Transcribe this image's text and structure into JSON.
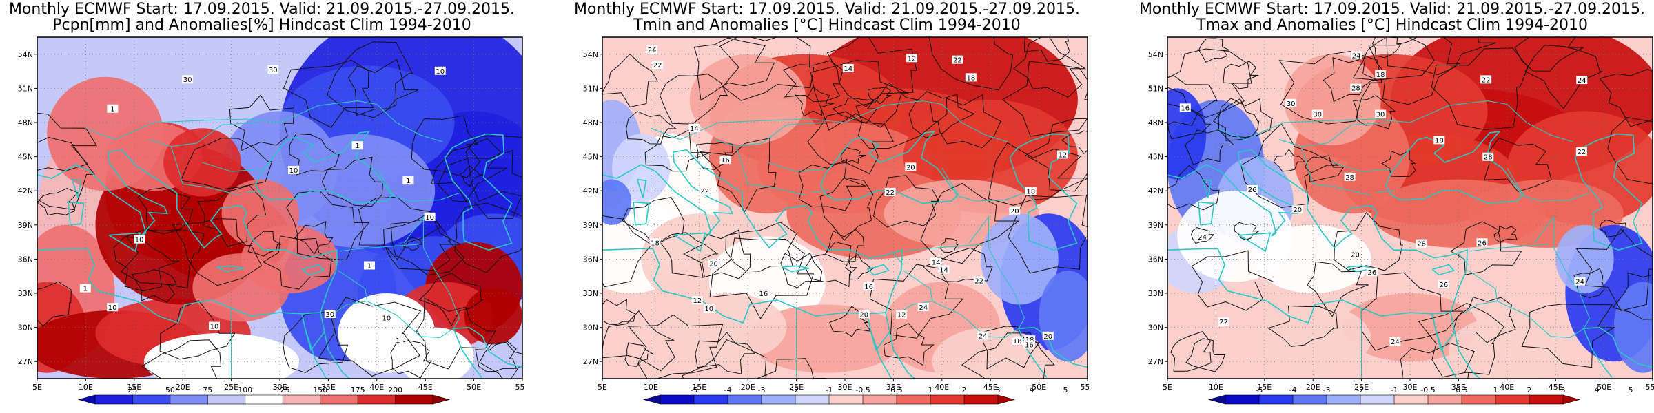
{
  "panels": [
    {
      "title1": "Monthly ECMWF Start: 17.09.2015. Valid: 21.09.2015.-27.09.2015.",
      "title2": "Pcpn[mm] and Anomalies[%] Hindcast Clim 1994-2010",
      "colorbar_ticks": [
        "25",
        "50",
        "75",
        "100",
        "125",
        "150",
        "175",
        "200"
      ],
      "contour_labels": [
        "1",
        "1",
        "10",
        "10",
        "10",
        "10",
        "10",
        "30",
        "30",
        "30",
        "10",
        "10",
        "1",
        "1",
        "1",
        "1"
      ]
    },
    {
      "title1": "Monthly ECMWF Start: 17.09.2015. Valid: 21.09.2015.-27.09.2015.",
      "title2": "Tmin and Anomalies [°C] Hindcast Clim 1994-2010",
      "colorbar_ticks": [
        "-5",
        "-4",
        "-3",
        "-2",
        "-1",
        "-0.5",
        "0.5",
        "1",
        "2",
        "3",
        "4",
        "5"
      ],
      "contour_labels": [
        "12",
        "12",
        "14",
        "10",
        "12",
        "14",
        "16",
        "18",
        "20",
        "22",
        "14",
        "16",
        "18",
        "20",
        "22",
        "22",
        "24",
        "18",
        "20",
        "22",
        "24",
        "16",
        "18",
        "20",
        "22",
        "12",
        "14",
        "16",
        "18",
        "20",
        "24"
      ]
    },
    {
      "title1": "Monthly ECMWF Start: 17.09.2015. Valid: 21.09.2015.-27.09.2015.",
      "title2": "Tmax and Anomalies [°C] Hindcast Clim 1994-2010",
      "colorbar_ticks": [
        "-5",
        "-4",
        "-3",
        "-2",
        "-1",
        "-0.5",
        "0.5",
        "1",
        "2",
        "3",
        "4",
        "5"
      ],
      "contour_labels": [
        "18",
        "20",
        "22",
        "24",
        "16",
        "18",
        "20",
        "24",
        "26",
        "28",
        "22",
        "24",
        "26",
        "28",
        "30",
        "26",
        "28",
        "30",
        "24",
        "26",
        "28",
        "30",
        "22",
        "24"
      ]
    }
  ],
  "lat_labels": [
    "54N",
    "51N",
    "48N",
    "45N",
    "42N",
    "39N",
    "36N",
    "33N",
    "30N",
    "27N"
  ],
  "lon_labels": [
    "5E",
    "10E",
    "15E",
    "20E",
    "25E",
    "30E",
    "35E",
    "40E",
    "45E",
    "50E",
    "55E"
  ],
  "palette": {
    "precip": [
      "#1f1fe0",
      "#3a4cf0",
      "#7f8cf5",
      "#c4c9fa",
      "#ffffff",
      "#f5b5b5",
      "#ee7070",
      "#dd2c2c",
      "#b00000"
    ],
    "temp": [
      "#0a0ac8",
      "#2a3af0",
      "#5f78f5",
      "#9fb0fa",
      "#cfd6fc",
      "#ffffff",
      "#fbd0cc",
      "#f6a49c",
      "#ee6b5f",
      "#e23a2e",
      "#c80e0e"
    ],
    "coast": "#28c8c8"
  }
}
